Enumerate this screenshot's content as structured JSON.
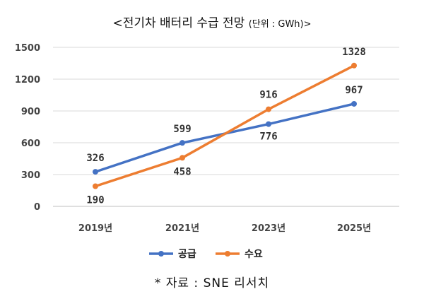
{
  "header": {
    "title_main": "<전기차 배터리 수급 전망 ",
    "title_unit": "(단위 : GWh)>"
  },
  "footer": {
    "source": "* 자료 : SNE 리서치"
  },
  "chart_data": {
    "type": "line",
    "categories": [
      "2019년",
      "2021년",
      "2023년",
      "2025년"
    ],
    "series": [
      {
        "name": "공급",
        "values": [
          326,
          599,
          776,
          967
        ],
        "color": "#4472C4"
      },
      {
        "name": "수요",
        "values": [
          190,
          458,
          916,
          1328
        ],
        "color": "#ED7D31"
      }
    ],
    "ylim": [
      0,
      1500
    ],
    "yticks": [
      "0",
      "300",
      "600",
      "900",
      "1200",
      "1500"
    ],
    "ytick_values": [
      0,
      300,
      600,
      900,
      1200,
      1500
    ],
    "grid": true,
    "legend_position": "bottom"
  }
}
